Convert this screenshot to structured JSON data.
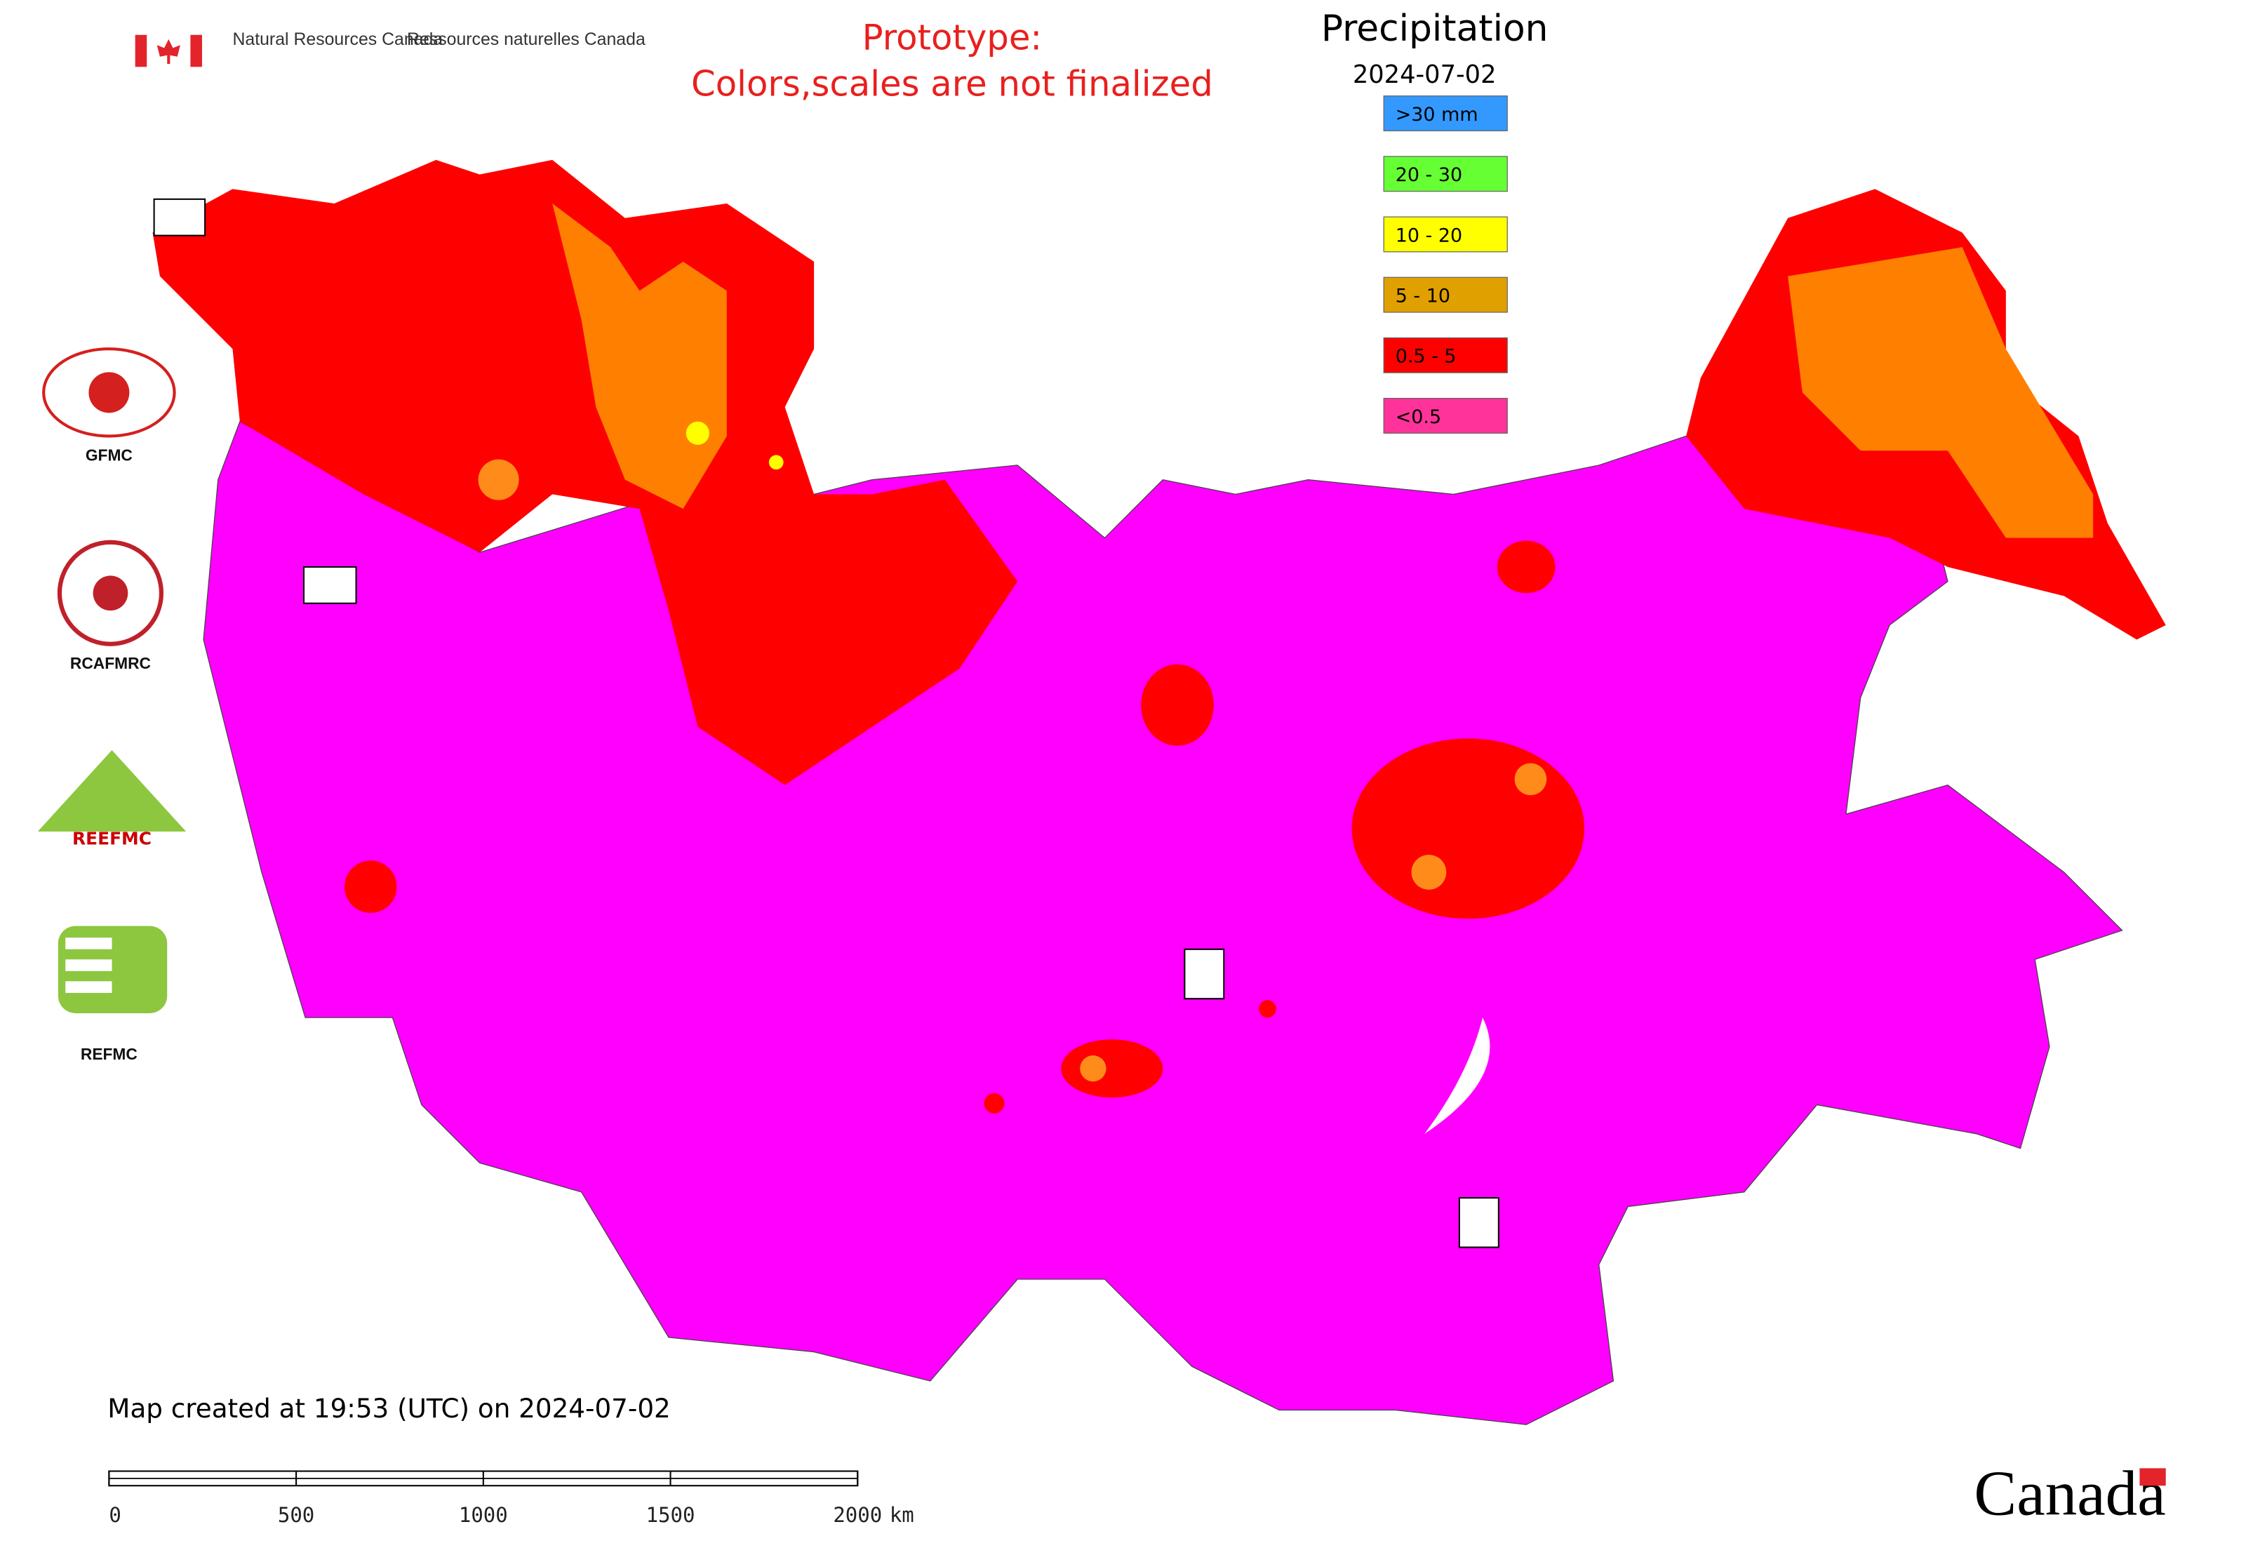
{
  "header": {
    "agency_en": "Natural Resources Canada",
    "agency_fr": "Ressources naturelles Canada",
    "notice_line1": "Prototype:",
    "notice_line2": "Colors,scales are not finalized"
  },
  "legend": {
    "title": "Precipitation",
    "date": "2024-07-02",
    "items": [
      {
        "label": ">30 mm",
        "color": "#3399ff"
      },
      {
        "label": "20 - 30",
        "color": "#66ff33"
      },
      {
        "label": "10 - 20",
        "color": "#ffff00"
      },
      {
        "label": "5 - 10",
        "color": "#e0a000"
      },
      {
        "label": "0.5 - 5",
        "color": "#ff0000"
      },
      {
        "label": "<0.5",
        "color": "#ff3399"
      }
    ]
  },
  "logos": [
    "GFMC",
    "RCAFMRC",
    "REEFMC",
    "REFMC"
  ],
  "footer": {
    "created": "Map created at 19:53 (UTC) on 2024-07-02",
    "wordmark": "Canada"
  },
  "scale_bar": {
    "ticks": [
      0,
      500,
      1000,
      1500,
      2000
    ],
    "unit": "km"
  }
}
